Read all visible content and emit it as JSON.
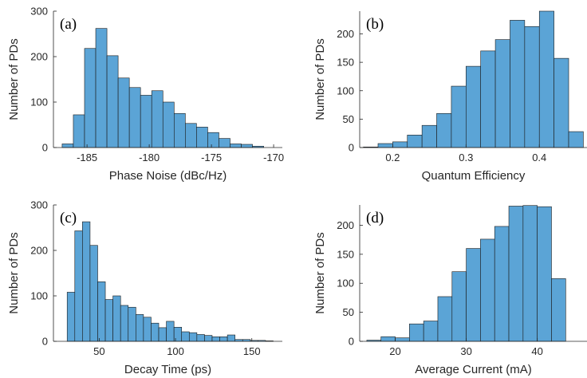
{
  "chart_data": [
    {
      "type": "bar",
      "panel_label": "(a)",
      "xlabel": "Phase Noise (dBc/Hz)",
      "ylabel": "Number of PDs",
      "xlim": [
        -187.7,
        -169.3
      ],
      "ylim": [
        0,
        300
      ],
      "xticks": [
        -185,
        -180,
        -175,
        -170
      ],
      "xticklabels": [
        "-185",
        "-180",
        "-175",
        "-170"
      ],
      "yticks": [
        0,
        100,
        200,
        300
      ],
      "bin_edges": [
        -187.0,
        -186.1,
        -185.2,
        -184.3,
        -183.4,
        -182.5,
        -181.6,
        -180.7,
        -179.8,
        -178.9,
        -178.0,
        -177.1,
        -176.2,
        -175.3,
        -174.4,
        -173.5,
        -172.6,
        -171.7,
        -170.8
      ],
      "counts": [
        8,
        72,
        218,
        262,
        202,
        153,
        132,
        115,
        125,
        100,
        75,
        53,
        45,
        33,
        20,
        8,
        7,
        3
      ],
      "bar_color": "#5ba4d6",
      "edge_color": "#1a1a1a",
      "grid": false
    },
    {
      "type": "bar",
      "panel_label": "(b)",
      "xlabel": "Quantum Efficiency",
      "ylabel": "Number of PDs",
      "xlim": [
        0.155,
        0.465
      ],
      "ylim": [
        0,
        240
      ],
      "xticks": [
        0.2,
        0.3,
        0.4
      ],
      "xticklabels": [
        "0.2",
        "0.3",
        "0.4"
      ],
      "yticks": [
        0,
        50,
        100,
        150,
        200
      ],
      "bin_edges": [
        0.16,
        0.18,
        0.2,
        0.22,
        0.24,
        0.26,
        0.28,
        0.3,
        0.32,
        0.34,
        0.36,
        0.38,
        0.4,
        0.42,
        0.44,
        0.46
      ],
      "counts": [
        1,
        7,
        10,
        22,
        39,
        60,
        108,
        143,
        170,
        190,
        224,
        213,
        240,
        157,
        28
      ],
      "bar_color": "#5ba4d6",
      "edge_color": "#1a1a1a",
      "grid": false
    },
    {
      "type": "bar",
      "panel_label": "(c)",
      "xlabel": "Decay Time (ps)",
      "ylabel": "Number of PDs",
      "xlim": [
        20,
        170
      ],
      "ylim": [
        0,
        300
      ],
      "xticks": [
        50,
        100,
        150
      ],
      "xticklabels": [
        "50",
        "100",
        "150"
      ],
      "yticks": [
        0,
        100,
        200,
        300
      ],
      "bin_edges": [
        29,
        34,
        39,
        44,
        49,
        54,
        59,
        64,
        69,
        74,
        79,
        84,
        89,
        94,
        99,
        104,
        109,
        114,
        119,
        124,
        129,
        134,
        139,
        144,
        149,
        154,
        159,
        164
      ],
      "counts": [
        108,
        243,
        263,
        211,
        131,
        92,
        100,
        79,
        75,
        59,
        53,
        40,
        30,
        44,
        31,
        21,
        19,
        15,
        13,
        10,
        10,
        14,
        4,
        4,
        2,
        2,
        1
      ],
      "bar_color": "#5ba4d6",
      "edge_color": "#1a1a1a",
      "grid": false
    },
    {
      "type": "bar",
      "panel_label": "(d)",
      "xlabel": "Average Current (mA)",
      "ylabel": "Number of PDs",
      "xlim": [
        15,
        47
      ],
      "ylim": [
        0,
        235
      ],
      "xticks": [
        20,
        30,
        40
      ],
      "xticklabels": [
        "20",
        "30",
        "40"
      ],
      "yticks": [
        0,
        50,
        100,
        150,
        200
      ],
      "bin_edges": [
        16,
        18,
        20,
        22,
        24,
        26,
        28,
        30,
        32,
        34,
        36,
        38,
        40,
        42,
        44
      ],
      "counts": [
        2,
        8,
        6,
        30,
        35,
        77,
        120,
        160,
        176,
        198,
        233,
        234,
        232,
        108
      ],
      "bar_color": "#5ba4d6",
      "edge_color": "#1a1a1a",
      "grid": false
    }
  ]
}
